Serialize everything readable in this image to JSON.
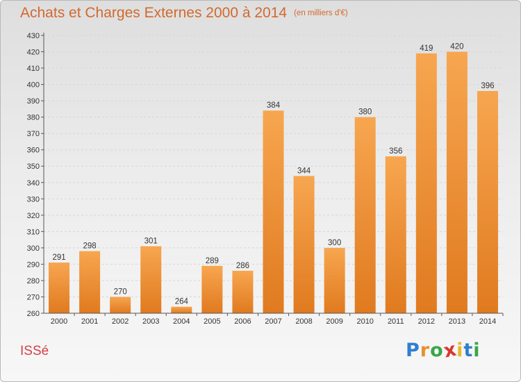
{
  "title": "Achats et Charges Externes 2000 à 2014",
  "unit": "(en milliers d'€)",
  "city": "ISSé",
  "logo": {
    "letters": [
      "P",
      "r",
      "o",
      "x",
      "i",
      "t",
      "i"
    ],
    "colors": [
      "#2f7fd0",
      "#e8912b",
      "#3aa64a",
      "#d9372f",
      "#e8b82b",
      "#2f7fd0",
      "#3aa64a"
    ]
  },
  "colors": {
    "bar_light": "#f7a650",
    "bar_dark": "#e07a1f",
    "title": "#d2692e",
    "city": "#d4404a"
  },
  "chart_data": {
    "type": "bar",
    "categories": [
      "2000",
      "2001",
      "2002",
      "2003",
      "2004",
      "2005",
      "2006",
      "2007",
      "2008",
      "2009",
      "2010",
      "2011",
      "2012",
      "2013",
      "2014"
    ],
    "values": [
      291,
      298,
      270,
      301,
      264,
      289,
      286,
      384,
      344,
      300,
      380,
      356,
      419,
      420,
      396
    ],
    "ylim": [
      260,
      430
    ],
    "yticks": [
      260,
      270,
      280,
      290,
      300,
      310,
      320,
      330,
      340,
      350,
      360,
      370,
      380,
      390,
      400,
      410,
      420,
      430
    ],
    "grid": true,
    "title": "Achats et Charges Externes 2000 à 2014",
    "xlabel": "",
    "ylabel": ""
  }
}
